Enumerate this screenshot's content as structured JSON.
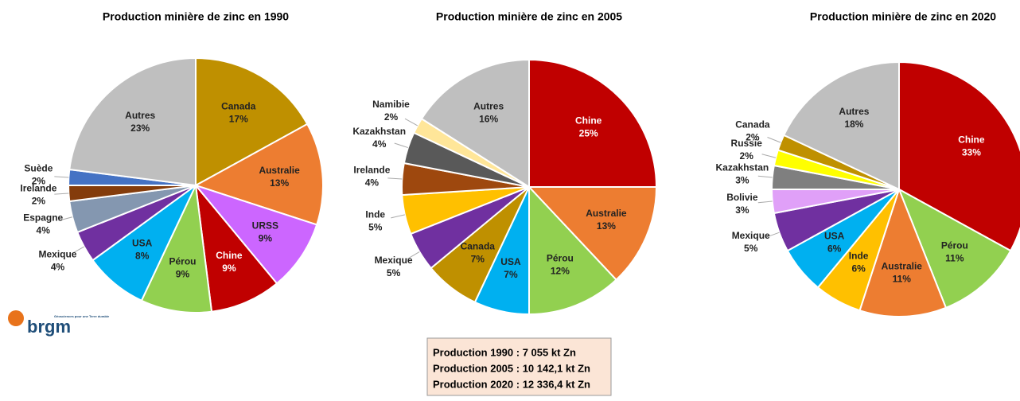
{
  "chart_data": [
    {
      "type": "pie",
      "title": "Production minière de zinc en 1990",
      "categories": [
        "Canada",
        "Australie",
        "URSS",
        "Chine",
        "Pérou",
        "USA",
        "Mexique",
        "Espagne",
        "Irelande",
        "Suède",
        "Autres"
      ],
      "values": [
        17,
        13,
        9,
        9,
        9,
        8,
        4,
        4,
        2,
        2,
        23
      ],
      "value_labels": [
        "17%",
        "13%",
        "9%",
        "9%",
        "9%",
        "8%",
        "4%",
        "4%",
        "2%",
        "2%",
        "23%"
      ],
      "colors": [
        "#bf9000",
        "#ed7d31",
        "#cc66ff",
        "#c00000",
        "#92d050",
        "#00b0f0",
        "#7030a0",
        "#8497b0",
        "#843c0c",
        "#4472c4",
        "#bfbfbf"
      ]
    },
    {
      "type": "pie",
      "title": "Production minière de zinc en 2005",
      "categories": [
        "Chine",
        "Australie",
        "Pérou",
        "USA",
        "Canada",
        "Mexique",
        "Inde",
        "Irelande",
        "Kazakhstan",
        "Namibie",
        "Autres"
      ],
      "values": [
        25,
        13,
        12,
        7,
        7,
        5,
        5,
        4,
        4,
        2,
        16
      ],
      "value_labels": [
        "25%",
        "13%",
        "12%",
        "7%",
        "7%",
        "5%",
        "5%",
        "4%",
        "4%",
        "2%",
        "16%"
      ],
      "colors": [
        "#c00000",
        "#ed7d31",
        "#92d050",
        "#00b0f0",
        "#bf9000",
        "#7030a0",
        "#ffc000",
        "#9e480e",
        "#595959",
        "#ffe699",
        "#bfbfbf"
      ]
    },
    {
      "type": "pie",
      "title": "Production minière de zinc en 2020",
      "categories": [
        "Chine",
        "Pérou",
        "Australie",
        "Inde",
        "USA",
        "Mexique",
        "Bolivie",
        "Kazakhstan",
        "Russie",
        "Canada",
        "Autres"
      ],
      "values": [
        33,
        11,
        11,
        6,
        6,
        5,
        3,
        3,
        2,
        2,
        18
      ],
      "value_labels": [
        "33%",
        "11%",
        "11%",
        "6%",
        "6%",
        "5%",
        "3%",
        "3%",
        "2%",
        "2%",
        "18%"
      ],
      "colors": [
        "#c00000",
        "#92d050",
        "#ed7d31",
        "#ffc000",
        "#00b0f0",
        "#7030a0",
        "#e0a0f8",
        "#7f7f7f",
        "#ffff00",
        "#bf9000",
        "#bfbfbf"
      ]
    }
  ],
  "note": [
    "Production 1990 : 7 055 kt Zn",
    "Production 2005 : 10 142,1 kt Zn",
    "Production 2020 : 12 336,4 kt Zn"
  ],
  "logo": {
    "name": "brgm",
    "tagline": "Géosciences pour une Terre durable"
  }
}
